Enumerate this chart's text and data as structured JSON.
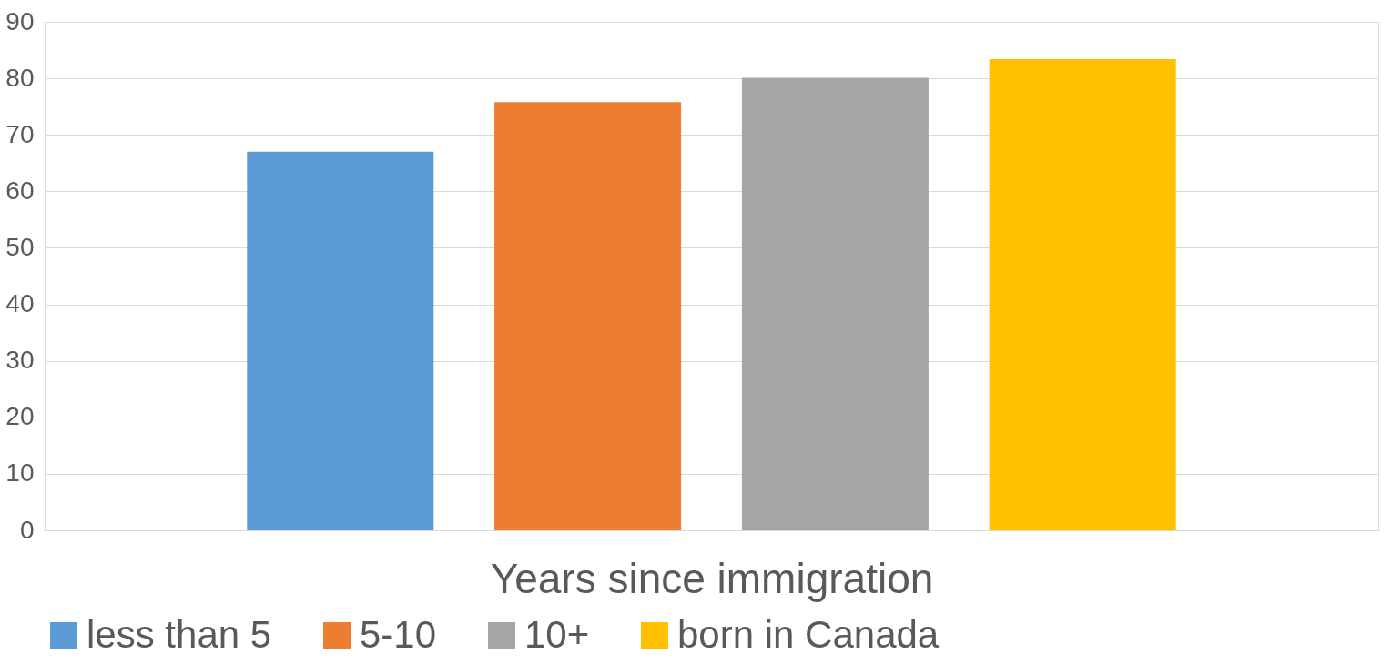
{
  "chart_data": {
    "type": "bar",
    "xlabel": "Years since immigration",
    "categories": [
      null
    ],
    "series": [
      {
        "name": "less than 5",
        "color": "#5b9bd5",
        "values": [
          67.0
        ]
      },
      {
        "name": "5-10",
        "color": "#ed7d31",
        "values": [
          75.8
        ]
      },
      {
        "name": "10+",
        "color": "#a5a5a5",
        "values": [
          80.1
        ]
      },
      {
        "name": "born in Canada",
        "color": "#ffc000",
        "values": [
          83.4
        ]
      }
    ],
    "ylim": [
      0,
      90
    ],
    "yticks": [
      0,
      10,
      20,
      30,
      40,
      50,
      60,
      70,
      80,
      90
    ],
    "grid": "y",
    "legend": "bottom"
  }
}
